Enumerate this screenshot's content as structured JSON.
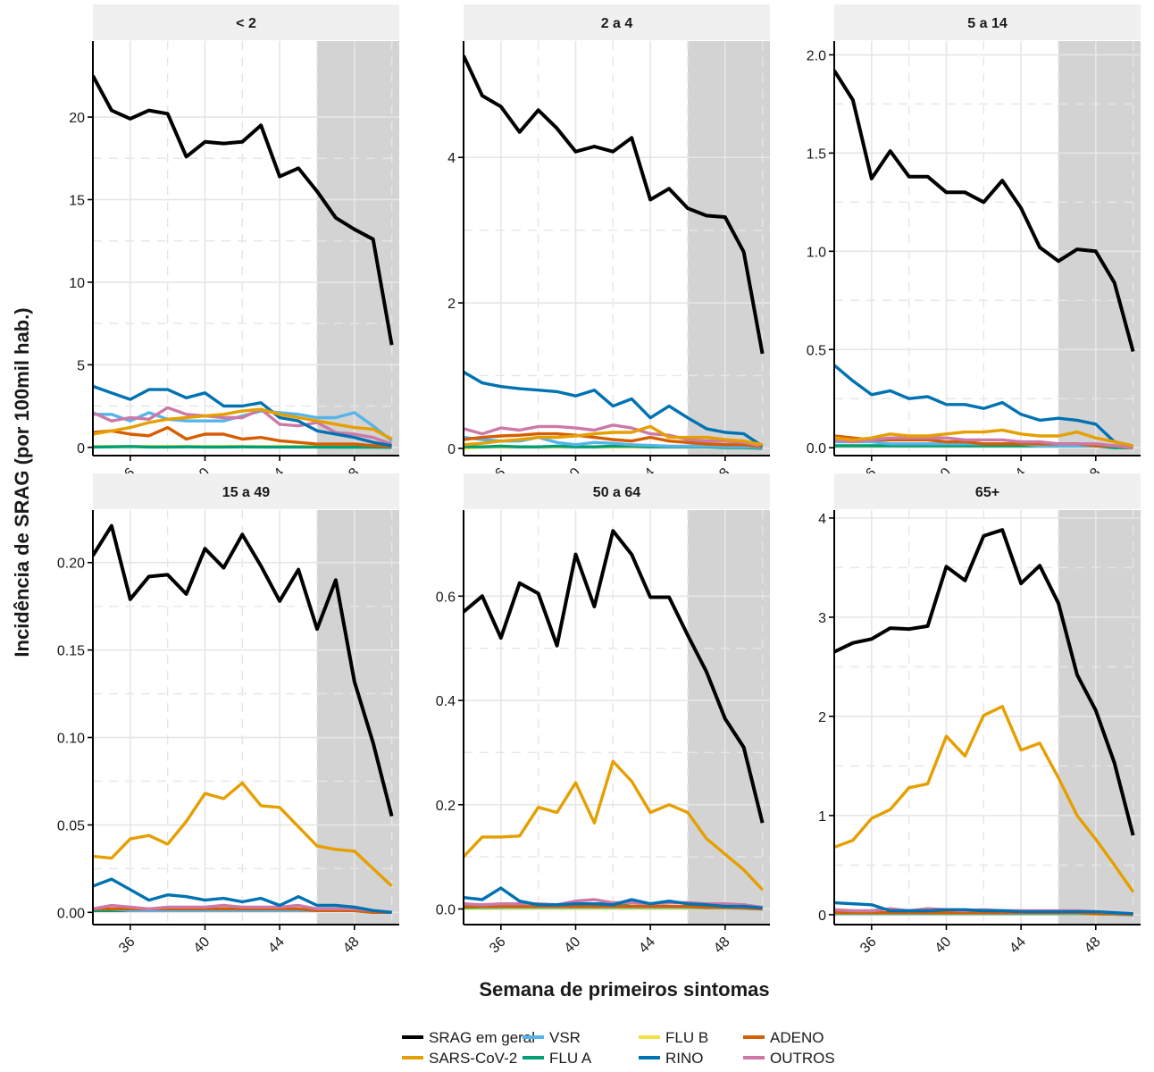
{
  "chart_data": {
    "type": "line",
    "xlabel": "Semana de primeiros sintomas",
    "ylabel": "Incidência de SRAG (por 100mil hab.)",
    "xlim": [
      34,
      50.4
    ],
    "x_ticks": [
      36,
      40,
      44,
      48
    ],
    "x_tick_labels": [
      "36",
      "40",
      "44",
      "48"
    ],
    "shaded_region": [
      46,
      50.4
    ],
    "grid": true,
    "legend_position": "bottom",
    "series_meta": [
      {
        "key": "srag",
        "name": "SRAG em geral",
        "color": "#000000"
      },
      {
        "key": "sars",
        "name": "SARS-CoV-2",
        "color": "#E69F00"
      },
      {
        "key": "vsr",
        "name": "VSR",
        "color": "#56B4E9"
      },
      {
        "key": "flua",
        "name": "FLU A",
        "color": "#009E73"
      },
      {
        "key": "flub",
        "name": "FLU B",
        "color": "#F0E442"
      },
      {
        "key": "rino",
        "name": "RINO",
        "color": "#0072B2"
      },
      {
        "key": "adeno",
        "name": "ADENO",
        "color": "#D55E00"
      },
      {
        "key": "outros",
        "name": "OUTROS",
        "color": "#CC79A7"
      }
    ],
    "x": [
      34,
      35,
      36,
      37,
      38,
      39,
      40,
      41,
      42,
      43,
      44,
      45,
      46,
      47,
      48,
      49,
      50
    ],
    "panels": [
      {
        "title": "< 2",
        "ylim": [
          -0.5,
          24.6
        ],
        "y_ticks": [
          0,
          5,
          10,
          15,
          20
        ],
        "y_tick_labels": [
          "0",
          "5",
          "10",
          "15",
          "20"
        ],
        "series": {
          "srag": [
            22.5,
            20.4,
            19.9,
            20.4,
            20.2,
            17.6,
            18.5,
            18.4,
            18.5,
            19.5,
            16.4,
            16.9,
            15.5,
            13.9,
            13.2,
            12.6,
            6.2
          ],
          "sars": [
            0.8,
            1.0,
            1.2,
            1.5,
            1.7,
            1.8,
            1.9,
            2.0,
            2.2,
            2.3,
            2.0,
            1.8,
            1.6,
            1.4,
            1.2,
            1.1,
            0.5
          ],
          "vsr": [
            2.0,
            2.0,
            1.6,
            2.1,
            1.7,
            1.6,
            1.6,
            1.6,
            1.9,
            2.2,
            2.1,
            2.0,
            1.8,
            1.8,
            2.1,
            1.3,
            0.4
          ],
          "flua": [
            0.02,
            0.03,
            0.05,
            0.02,
            0.02,
            0.03,
            0.02,
            0.02,
            0.03,
            0.02,
            0.02,
            0.02,
            0.02,
            0.01,
            0.01,
            0.01,
            0.0
          ],
          "flub": [
            0.05,
            0.05,
            0.05,
            0.05,
            0.05,
            0.05,
            0.05,
            0.05,
            0.05,
            0.05,
            0.05,
            0.05,
            0.05,
            0.05,
            0.05,
            0.04,
            0.02
          ],
          "rino": [
            3.7,
            3.3,
            2.9,
            3.5,
            3.5,
            3.0,
            3.3,
            2.5,
            2.5,
            2.7,
            1.8,
            1.6,
            1.0,
            0.8,
            0.6,
            0.3,
            0.1
          ],
          "adeno": [
            0.9,
            1.0,
            0.8,
            0.7,
            1.2,
            0.5,
            0.8,
            0.8,
            0.5,
            0.6,
            0.4,
            0.3,
            0.2,
            0.2,
            0.2,
            0.1,
            0.05
          ],
          "outros": [
            2.1,
            1.6,
            1.8,
            1.7,
            2.4,
            2.0,
            1.9,
            1.8,
            1.8,
            2.3,
            1.4,
            1.3,
            1.5,
            0.9,
            0.8,
            0.6,
            0.2
          ]
        }
      },
      {
        "title": "2 a 4",
        "ylim": [
          -0.1,
          5.6
        ],
        "y_ticks": [
          0,
          2,
          4
        ],
        "y_tick_labels": [
          "0",
          "2",
          "4"
        ],
        "series": {
          "srag": [
            5.4,
            4.85,
            4.7,
            4.35,
            4.65,
            4.4,
            4.08,
            4.15,
            4.08,
            4.27,
            3.42,
            3.57,
            3.3,
            3.2,
            3.18,
            2.7,
            1.3
          ],
          "sars": [
            0.05,
            0.07,
            0.1,
            0.12,
            0.15,
            0.15,
            0.17,
            0.2,
            0.22,
            0.22,
            0.3,
            0.15,
            0.15,
            0.15,
            0.12,
            0.1,
            0.05
          ],
          "vsr": [
            0.15,
            0.12,
            0.1,
            0.1,
            0.15,
            0.08,
            0.05,
            0.08,
            0.07,
            0.05,
            0.04,
            0.03,
            0.03,
            0.03,
            0.02,
            0.02,
            0.01
          ],
          "flua": [
            0.02,
            0.02,
            0.03,
            0.02,
            0.02,
            0.03,
            0.02,
            0.02,
            0.03,
            0.03,
            0.02,
            0.02,
            0.02,
            0.02,
            0.01,
            0.01,
            0.0
          ],
          "flub": [
            0.0,
            0.02,
            0.02,
            0.02,
            0.02,
            0.02,
            0.02,
            0.02,
            0.02,
            0.02,
            0.02,
            0.02,
            0.02,
            0.02,
            0.02,
            0.02,
            0.0
          ],
          "rino": [
            1.05,
            0.9,
            0.85,
            0.82,
            0.8,
            0.78,
            0.72,
            0.8,
            0.58,
            0.68,
            0.42,
            0.58,
            0.42,
            0.27,
            0.22,
            0.2,
            0.03
          ],
          "adeno": [
            0.12,
            0.15,
            0.17,
            0.18,
            0.2,
            0.2,
            0.18,
            0.15,
            0.12,
            0.1,
            0.15,
            0.1,
            0.08,
            0.06,
            0.05,
            0.05,
            0.02
          ],
          "outros": [
            0.27,
            0.2,
            0.28,
            0.25,
            0.3,
            0.3,
            0.28,
            0.25,
            0.32,
            0.28,
            0.2,
            0.18,
            0.12,
            0.1,
            0.1,
            0.08,
            0.03
          ]
        }
      },
      {
        "title": "5 a 14",
        "ylim": [
          -0.04,
          2.07
        ],
        "y_ticks": [
          0.0,
          0.5,
          1.0,
          1.5,
          2.0
        ],
        "y_tick_labels": [
          "0.0",
          "0.5",
          "1.0",
          "1.5",
          "2.0"
        ],
        "series": {
          "srag": [
            1.92,
            1.77,
            1.37,
            1.51,
            1.38,
            1.38,
            1.3,
            1.3,
            1.25,
            1.36,
            1.22,
            1.02,
            0.95,
            1.01,
            1.0,
            0.84,
            0.49
          ],
          "sars": [
            0.05,
            0.04,
            0.05,
            0.07,
            0.06,
            0.06,
            0.07,
            0.08,
            0.08,
            0.09,
            0.07,
            0.06,
            0.06,
            0.08,
            0.05,
            0.03,
            0.01
          ],
          "vsr": [
            0.03,
            0.03,
            0.03,
            0.02,
            0.02,
            0.02,
            0.02,
            0.02,
            0.02,
            0.02,
            0.02,
            0.01,
            0.01,
            0.01,
            0.01,
            0.01,
            0.0
          ],
          "flua": [
            0.01,
            0.01,
            0.01,
            0.01,
            0.01,
            0.01,
            0.01,
            0.01,
            0.01,
            0.01,
            0.01,
            0.01,
            0.01,
            0.01,
            0.01,
            0.0,
            0.0
          ],
          "flub": [
            0.01,
            0.01,
            0.01,
            0.01,
            0.01,
            0.01,
            0.01,
            0.01,
            0.01,
            0.01,
            0.01,
            0.01,
            0.01,
            0.01,
            0.01,
            0.0,
            0.0
          ],
          "rino": [
            0.42,
            0.34,
            0.27,
            0.29,
            0.25,
            0.26,
            0.22,
            0.22,
            0.2,
            0.23,
            0.17,
            0.14,
            0.15,
            0.14,
            0.12,
            0.03,
            0.01
          ],
          "adeno": [
            0.06,
            0.05,
            0.04,
            0.04,
            0.04,
            0.04,
            0.03,
            0.03,
            0.02,
            0.02,
            0.02,
            0.02,
            0.02,
            0.02,
            0.01,
            0.01,
            0.0
          ],
          "outros": [
            0.04,
            0.03,
            0.04,
            0.05,
            0.05,
            0.05,
            0.05,
            0.04,
            0.04,
            0.04,
            0.03,
            0.03,
            0.02,
            0.02,
            0.02,
            0.01,
            0.0
          ]
        }
      },
      {
        "title": "15 a 49",
        "ylim": [
          -0.007,
          0.23
        ],
        "y_ticks": [
          0.0,
          0.05,
          0.1,
          0.15,
          0.2
        ],
        "y_tick_labels": [
          "0.00",
          "0.05",
          "0.10",
          "0.15",
          "0.20"
        ],
        "series": {
          "srag": [
            0.204,
            0.221,
            0.179,
            0.192,
            0.193,
            0.182,
            0.208,
            0.197,
            0.216,
            0.198,
            0.178,
            0.196,
            0.162,
            0.19,
            0.132,
            0.097,
            0.055
          ],
          "sars": [
            0.032,
            0.031,
            0.042,
            0.044,
            0.039,
            0.052,
            0.068,
            0.065,
            0.074,
            0.061,
            0.06,
            0.049,
            0.038,
            0.036,
            0.035,
            0.025,
            0.015
          ],
          "vsr": [
            0.002,
            0.002,
            0.001,
            0.001,
            0.001,
            0.001,
            0.001,
            0.001,
            0.001,
            0.001,
            0.001,
            0.001,
            0.001,
            0.001,
            0.001,
            0.0,
            0.0
          ],
          "flua": [
            0.001,
            0.001,
            0.001,
            0.001,
            0.001,
            0.001,
            0.001,
            0.002,
            0.001,
            0.001,
            0.001,
            0.001,
            0.001,
            0.001,
            0.001,
            0.0,
            0.0
          ],
          "flub": [
            0.001,
            0.001,
            0.001,
            0.001,
            0.001,
            0.001,
            0.001,
            0.001,
            0.001,
            0.001,
            0.001,
            0.001,
            0.001,
            0.001,
            0.001,
            0.0,
            0.0
          ],
          "rino": [
            0.015,
            0.019,
            0.013,
            0.007,
            0.01,
            0.009,
            0.007,
            0.008,
            0.006,
            0.008,
            0.004,
            0.009,
            0.004,
            0.004,
            0.003,
            0.001,
            0.0
          ],
          "adeno": [
            0.002,
            0.002,
            0.002,
            0.002,
            0.002,
            0.002,
            0.002,
            0.002,
            0.002,
            0.002,
            0.002,
            0.002,
            0.001,
            0.001,
            0.001,
            0.0,
            0.0
          ],
          "outros": [
            0.002,
            0.004,
            0.003,
            0.002,
            0.003,
            0.003,
            0.003,
            0.004,
            0.003,
            0.003,
            0.003,
            0.004,
            0.002,
            0.002,
            0.002,
            0.001,
            0.0
          ]
        }
      },
      {
        "title": "50 a 64",
        "ylim": [
          -0.03,
          0.765
        ],
        "y_ticks": [
          0.0,
          0.2,
          0.4,
          0.6
        ],
        "y_tick_labels": [
          "0.0",
          "0.2",
          "0.4",
          "0.6"
        ],
        "series": {
          "srag": [
            0.57,
            0.6,
            0.52,
            0.625,
            0.605,
            0.505,
            0.68,
            0.58,
            0.725,
            0.68,
            0.598,
            0.598,
            0.525,
            0.455,
            0.365,
            0.31,
            0.165
          ],
          "sars": [
            0.1,
            0.138,
            0.138,
            0.14,
            0.195,
            0.185,
            0.242,
            0.165,
            0.283,
            0.245,
            0.185,
            0.2,
            0.185,
            0.135,
            0.105,
            0.075,
            0.037
          ],
          "vsr": [
            0.005,
            0.004,
            0.003,
            0.003,
            0.003,
            0.003,
            0.003,
            0.003,
            0.003,
            0.003,
            0.003,
            0.003,
            0.003,
            0.002,
            0.002,
            0.001,
            0.0
          ],
          "flua": [
            0.003,
            0.003,
            0.003,
            0.005,
            0.005,
            0.005,
            0.01,
            0.01,
            0.01,
            0.005,
            0.005,
            0.005,
            0.003,
            0.003,
            0.003,
            0.008,
            0.001
          ],
          "flub": [
            0.001,
            0.001,
            0.001,
            0.001,
            0.001,
            0.001,
            0.001,
            0.001,
            0.001,
            0.001,
            0.001,
            0.001,
            0.001,
            0.001,
            0.001,
            0.001,
            0.0
          ],
          "rino": [
            0.022,
            0.018,
            0.04,
            0.015,
            0.008,
            0.008,
            0.01,
            0.01,
            0.008,
            0.018,
            0.01,
            0.015,
            0.01,
            0.008,
            0.005,
            0.005,
            0.002
          ],
          "adeno": [
            0.005,
            0.005,
            0.005,
            0.005,
            0.005,
            0.005,
            0.005,
            0.005,
            0.005,
            0.005,
            0.005,
            0.005,
            0.005,
            0.003,
            0.003,
            0.002,
            0.0
          ],
          "outros": [
            0.01,
            0.008,
            0.01,
            0.01,
            0.01,
            0.008,
            0.015,
            0.018,
            0.012,
            0.012,
            0.01,
            0.012,
            0.012,
            0.01,
            0.01,
            0.008,
            0.003
          ]
        }
      },
      {
        "title": "65+",
        "ylim": [
          -0.1,
          4.08
        ],
        "y_ticks": [
          0,
          1,
          2,
          3,
          4
        ],
        "y_tick_labels": [
          "0",
          "1",
          "2",
          "3",
          "4"
        ],
        "series": {
          "srag": [
            2.65,
            2.74,
            2.78,
            2.89,
            2.88,
            2.91,
            3.51,
            3.37,
            3.82,
            3.88,
            3.34,
            3.52,
            3.14,
            2.42,
            2.06,
            1.53,
            0.8
          ],
          "sars": [
            0.68,
            0.75,
            0.97,
            1.06,
            1.28,
            1.32,
            1.8,
            1.6,
            2.01,
            2.1,
            1.66,
            1.73,
            1.38,
            1.0,
            0.76,
            0.5,
            0.23
          ],
          "vsr": [
            0.01,
            0.01,
            0.01,
            0.01,
            0.01,
            0.01,
            0.01,
            0.01,
            0.01,
            0.01,
            0.01,
            0.01,
            0.01,
            0.01,
            0.01,
            0.005,
            0.0
          ],
          "flua": [
            0.01,
            0.01,
            0.01,
            0.01,
            0.01,
            0.01,
            0.01,
            0.01,
            0.01,
            0.01,
            0.01,
            0.01,
            0.01,
            0.01,
            0.01,
            0.005,
            0.0
          ],
          "flub": [
            0.005,
            0.005,
            0.005,
            0.005,
            0.005,
            0.005,
            0.005,
            0.005,
            0.005,
            0.005,
            0.005,
            0.005,
            0.005,
            0.005,
            0.005,
            0.003,
            0.0
          ],
          "rino": [
            0.12,
            0.11,
            0.1,
            0.04,
            0.04,
            0.04,
            0.05,
            0.05,
            0.04,
            0.04,
            0.03,
            0.03,
            0.03,
            0.03,
            0.03,
            0.02,
            0.01
          ],
          "adeno": [
            0.02,
            0.02,
            0.02,
            0.02,
            0.02,
            0.02,
            0.02,
            0.02,
            0.02,
            0.02,
            0.02,
            0.02,
            0.02,
            0.02,
            0.01,
            0.01,
            0.0
          ],
          "outros": [
            0.05,
            0.04,
            0.04,
            0.06,
            0.04,
            0.06,
            0.05,
            0.04,
            0.05,
            0.04,
            0.04,
            0.04,
            0.04,
            0.04,
            0.03,
            0.02,
            0.01
          ]
        }
      }
    ]
  }
}
